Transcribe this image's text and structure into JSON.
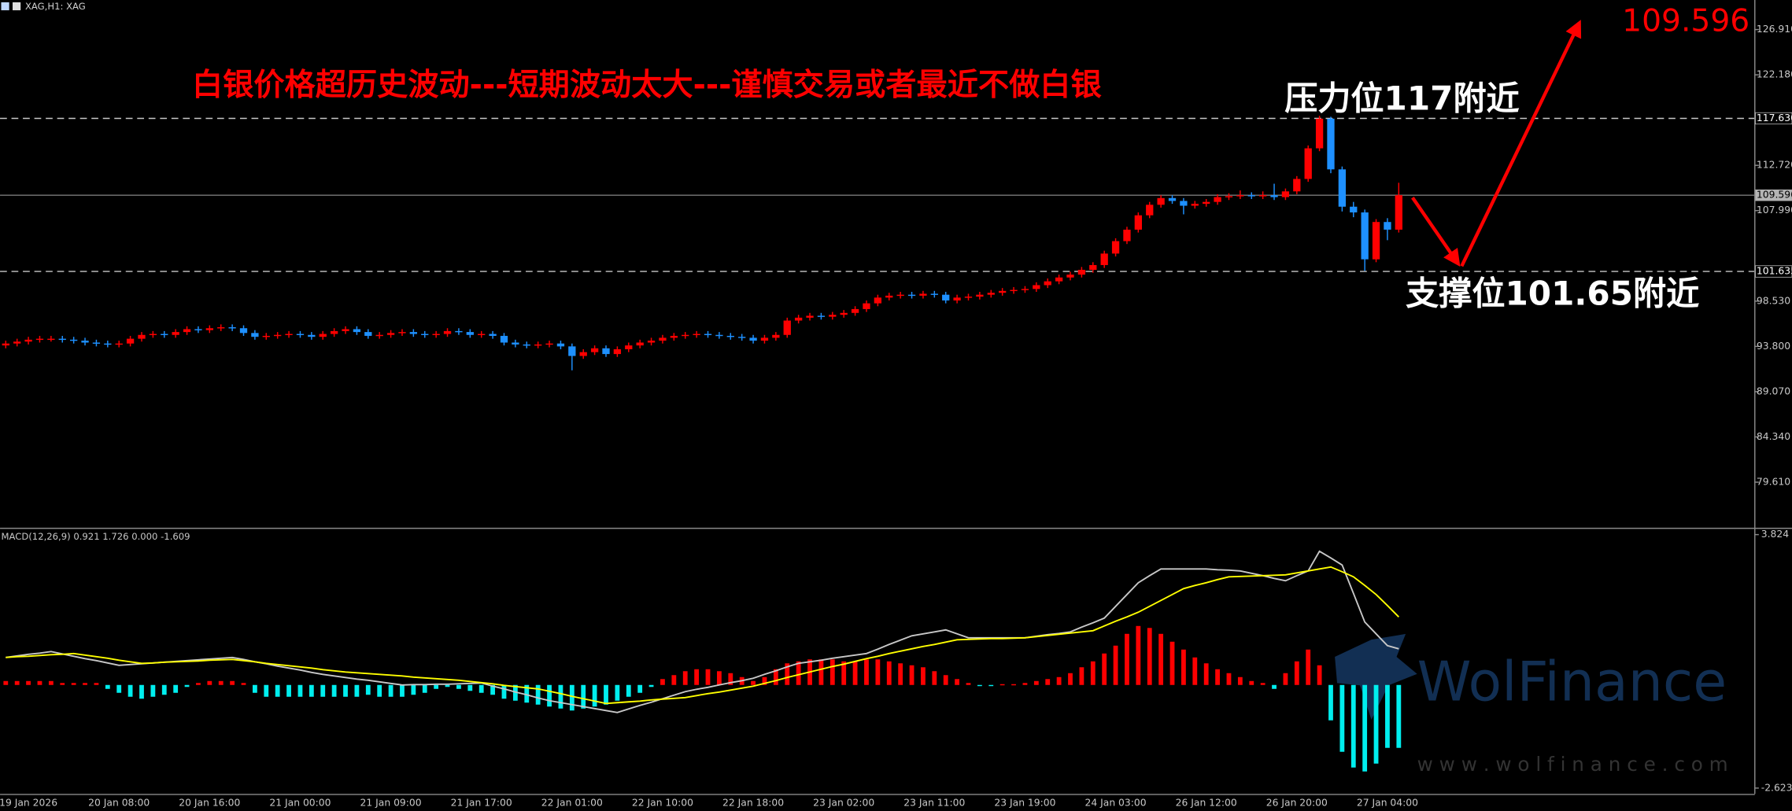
{
  "header": {
    "symbol_label": "XAG,H1: XAG"
  },
  "watermark": {
    "brand": "WolFinance",
    "url": "w w w . w o l f i n a n c e . c o m"
  },
  "chart_data": [
    {
      "type": "candlestick",
      "title": "白银价格超历史波动---短期波动太大---谨慎交易或者最近不做白银",
      "annotations": [
        {
          "text": "压力位117附近"
        },
        {
          "text": "支撑位101.65附近"
        }
      ],
      "price_label": "109.596",
      "up_color": "#ff0000",
      "down_color": "#1e90ff",
      "ylim": [
        74.85,
        130.0
      ],
      "yticks": [
        {
          "value": 79.61,
          "label": "79.610"
        },
        {
          "value": 84.34,
          "label": "84.340"
        },
        {
          "value": 89.07,
          "label": "89.070"
        },
        {
          "value": 93.8,
          "label": "93.800"
        },
        {
          "value": 98.53,
          "label": "98.530"
        },
        {
          "value": 107.99,
          "label": "107.990"
        },
        {
          "value": 112.72,
          "label": "112.720"
        },
        {
          "value": 122.18,
          "label": "122.180"
        },
        {
          "value": 126.91,
          "label": "126.910"
        }
      ],
      "levels": [
        {
          "value": 117.63,
          "label": "117.630",
          "style": "dashed"
        },
        {
          "value": 109.596,
          "label": "109.596",
          "style": "solid"
        },
        {
          "value": 101.635,
          "label": "101.635",
          "style": "dashed"
        }
      ],
      "categories": [
        null,
        null,
        "19 Jan 2026",
        null,
        null,
        null,
        null,
        null,
        null,
        null,
        "20 Jan 08:00",
        null,
        null,
        null,
        null,
        null,
        null,
        null,
        "20 Jan 16:00",
        null,
        null,
        null,
        null,
        null,
        null,
        null,
        "21 Jan 00:00",
        null,
        null,
        null,
        null,
        null,
        null,
        null,
        "21 Jan 09:00",
        null,
        null,
        null,
        null,
        null,
        null,
        null,
        "21 Jan 17:00",
        null,
        null,
        null,
        null,
        null,
        null,
        null,
        "22 Jan 01:00",
        null,
        null,
        null,
        null,
        null,
        null,
        null,
        "22 Jan 10:00",
        null,
        null,
        null,
        null,
        null,
        null,
        null,
        "22 Jan 18:00",
        null,
        null,
        null,
        null,
        null,
        null,
        null,
        "23 Jan 02:00",
        null,
        null,
        null,
        null,
        null,
        null,
        null,
        "23 Jan 11:00",
        null,
        null,
        null,
        null,
        null,
        null,
        null,
        "23 Jan 19:00",
        null,
        null,
        null,
        null,
        null,
        null,
        null,
        "24 Jan 03:00",
        null,
        null,
        null,
        null,
        null,
        null,
        null,
        "26 Jan 12:00",
        null,
        null,
        null,
        null,
        null,
        null,
        null,
        "26 Jan 20:00",
        null,
        null,
        null,
        null,
        null,
        null,
        null,
        "27 Jan 04:00",
        null
      ],
      "open": [
        93.9,
        94.1,
        94.3,
        94.5,
        94.6,
        94.6,
        94.5,
        94.4,
        94.2,
        94.1,
        94.0,
        94.1,
        94.6,
        95.0,
        95.1,
        95.0,
        95.3,
        95.6,
        95.5,
        95.7,
        95.8,
        95.7,
        95.2,
        94.8,
        94.9,
        95.0,
        95.1,
        95.0,
        94.8,
        95.1,
        95.4,
        95.6,
        95.3,
        94.9,
        95.0,
        95.2,
        95.3,
        95.1,
        95.0,
        95.1,
        95.4,
        95.3,
        95.0,
        95.1,
        94.9,
        94.2,
        94.0,
        93.9,
        94.0,
        94.1,
        93.8,
        92.8,
        93.2,
        93.6,
        93.0,
        93.5,
        93.9,
        94.2,
        94.4,
        94.7,
        94.9,
        95.0,
        95.1,
        95.0,
        94.9,
        94.8,
        94.7,
        94.4,
        94.7,
        95.0,
        96.5,
        96.8,
        97.0,
        96.9,
        97.1,
        97.3,
        97.7,
        98.3,
        98.9,
        99.1,
        99.2,
        99.1,
        99.3,
        99.2,
        98.6,
        98.9,
        99.0,
        99.2,
        99.4,
        99.6,
        99.7,
        99.8,
        100.2,
        100.6,
        101.0,
        101.3,
        101.8,
        102.3,
        103.5,
        104.8,
        106.0,
        107.5,
        108.6,
        109.3,
        109.0,
        108.5,
        108.7,
        108.9,
        109.4,
        109.5,
        109.6,
        109.5,
        109.6,
        109.4,
        110.0,
        111.3,
        114.5,
        117.6,
        112.3,
        108.4,
        107.8,
        102.9,
        106.8,
        106.0
      ],
      "high": [
        94.4,
        94.6,
        94.8,
        94.9,
        94.9,
        94.9,
        94.8,
        94.7,
        94.5,
        94.4,
        94.4,
        94.9,
        95.3,
        95.4,
        95.4,
        95.6,
        95.9,
        95.9,
        96.0,
        96.1,
        96.1,
        96.0,
        95.5,
        95.2,
        95.3,
        95.4,
        95.4,
        95.3,
        95.4,
        95.7,
        95.9,
        95.9,
        95.6,
        95.3,
        95.5,
        95.6,
        95.6,
        95.4,
        95.4,
        95.7,
        95.7,
        95.6,
        95.4,
        95.4,
        95.2,
        94.5,
        94.3,
        94.3,
        94.4,
        94.4,
        94.1,
        93.5,
        93.9,
        93.9,
        93.8,
        94.2,
        94.5,
        94.7,
        95.0,
        95.2,
        95.3,
        95.4,
        95.4,
        95.3,
        95.2,
        95.1,
        95.0,
        95.0,
        95.3,
        96.8,
        97.1,
        97.3,
        97.3,
        97.4,
        97.6,
        98.0,
        98.6,
        99.2,
        99.4,
        99.5,
        99.5,
        99.6,
        99.6,
        99.5,
        99.2,
        99.3,
        99.5,
        99.7,
        99.9,
        100.0,
        100.1,
        100.5,
        100.9,
        101.3,
        101.6,
        102.1,
        102.6,
        103.8,
        105.1,
        106.3,
        107.8,
        108.9,
        109.6,
        109.6,
        109.3,
        109.0,
        109.2,
        109.7,
        109.8,
        110.1,
        109.9,
        110.0,
        110.8,
        110.3,
        111.6,
        114.8,
        117.9,
        117.8,
        112.6,
        108.9,
        108.1,
        107.1,
        107.2,
        110.9
      ],
      "low": [
        93.6,
        93.8,
        94.0,
        94.2,
        94.3,
        94.2,
        94.1,
        93.9,
        93.8,
        93.7,
        93.7,
        93.8,
        94.3,
        94.7,
        94.7,
        94.7,
        95.0,
        95.2,
        95.2,
        95.4,
        95.4,
        94.9,
        94.5,
        94.5,
        94.6,
        94.7,
        94.7,
        94.5,
        94.5,
        94.8,
        95.1,
        95.0,
        94.6,
        94.6,
        94.7,
        94.9,
        94.8,
        94.7,
        94.7,
        94.8,
        95.0,
        94.7,
        94.7,
        94.6,
        93.9,
        93.7,
        93.6,
        93.6,
        93.7,
        93.5,
        91.3,
        92.5,
        92.9,
        92.7,
        92.7,
        93.2,
        93.6,
        93.9,
        94.1,
        94.4,
        94.6,
        94.7,
        94.7,
        94.6,
        94.5,
        94.4,
        94.1,
        94.1,
        94.4,
        94.7,
        96.2,
        96.5,
        96.6,
        96.6,
        96.8,
        97.0,
        97.4,
        98.0,
        98.6,
        98.8,
        98.8,
        98.8,
        98.9,
        98.3,
        98.3,
        98.6,
        98.7,
        98.9,
        99.1,
        99.3,
        99.4,
        99.5,
        99.9,
        100.3,
        100.7,
        101.0,
        101.5,
        102.0,
        103.2,
        104.5,
        105.7,
        107.2,
        108.3,
        108.7,
        107.6,
        108.2,
        108.4,
        108.6,
        109.1,
        109.2,
        109.2,
        109.2,
        109.1,
        109.1,
        109.7,
        111.0,
        114.2,
        111.9,
        107.9,
        107.3,
        101.7,
        102.6,
        104.9,
        105.7
      ],
      "close": [
        94.1,
        94.3,
        94.5,
        94.6,
        94.6,
        94.5,
        94.4,
        94.2,
        94.1,
        94.0,
        94.1,
        94.6,
        95.0,
        95.1,
        95.0,
        95.3,
        95.6,
        95.5,
        95.7,
        95.8,
        95.7,
        95.2,
        94.8,
        94.9,
        95.0,
        95.1,
        95.0,
        94.8,
        95.1,
        95.4,
        95.6,
        95.3,
        94.9,
        95.0,
        95.2,
        95.3,
        95.1,
        95.0,
        95.1,
        95.4,
        95.3,
        95.0,
        95.1,
        94.9,
        94.2,
        94.0,
        93.9,
        94.0,
        94.1,
        93.8,
        92.8,
        93.2,
        93.6,
        93.0,
        93.5,
        93.9,
        94.2,
        94.4,
        94.7,
        94.9,
        95.0,
        95.1,
        95.0,
        94.9,
        94.8,
        94.7,
        94.4,
        94.7,
        95.0,
        96.5,
        96.8,
        97.0,
        96.9,
        97.1,
        97.3,
        97.7,
        98.3,
        98.9,
        99.1,
        99.2,
        99.1,
        99.3,
        99.2,
        98.6,
        98.9,
        99.0,
        99.2,
        99.4,
        99.6,
        99.7,
        99.8,
        100.2,
        100.6,
        101.0,
        101.3,
        101.8,
        102.3,
        103.5,
        104.8,
        106.0,
        107.5,
        108.6,
        109.3,
        109.0,
        108.5,
        108.7,
        108.9,
        109.4,
        109.5,
        109.6,
        109.5,
        109.6,
        109.4,
        110.0,
        111.3,
        114.5,
        117.6,
        112.3,
        108.4,
        107.8,
        102.9,
        106.8,
        106.0,
        109.6
      ]
    },
    {
      "type": "macd",
      "title": "MACD(12,26,9) 0.921 1.726 0.000 -1.609",
      "ylim": [
        -2.77,
        3.97
      ],
      "yticks": [
        3.824,
        -2.623
      ],
      "histogram": {
        "positive_color": "#ff0000",
        "negative_color": "#00eeee",
        "values": [
          0.1,
          0.1,
          0.1,
          0.1,
          0.1,
          0.05,
          0.05,
          0.05,
          0.05,
          -0.1,
          -0.2,
          -0.3,
          -0.35,
          -0.3,
          -0.25,
          -0.2,
          -0.05,
          0.05,
          0.1,
          0.1,
          0.1,
          0.05,
          -0.2,
          -0.3,
          -0.3,
          -0.3,
          -0.3,
          -0.3,
          -0.3,
          -0.3,
          -0.3,
          -0.3,
          -0.25,
          -0.3,
          -0.3,
          -0.3,
          -0.25,
          -0.2,
          -0.1,
          -0.05,
          -0.1,
          -0.15,
          -0.2,
          -0.25,
          -0.35,
          -0.4,
          -0.45,
          -0.5,
          -0.55,
          -0.6,
          -0.65,
          -0.6,
          -0.55,
          -0.5,
          -0.4,
          -0.3,
          -0.2,
          -0.05,
          0.15,
          0.25,
          0.35,
          0.4,
          0.4,
          0.35,
          0.3,
          0.2,
          0.1,
          0.2,
          0.4,
          0.55,
          0.6,
          0.65,
          0.65,
          0.65,
          0.6,
          0.6,
          0.65,
          0.65,
          0.6,
          0.55,
          0.5,
          0.45,
          0.35,
          0.25,
          0.15,
          0.05,
          -0.02,
          -0.02,
          0.02,
          0.02,
          0.05,
          0.1,
          0.15,
          0.2,
          0.3,
          0.45,
          0.6,
          0.8,
          1.0,
          1.3,
          1.5,
          1.45,
          1.3,
          1.1,
          0.9,
          0.7,
          0.55,
          0.4,
          0.3,
          0.2,
          0.1,
          0.05,
          -0.1,
          0.3,
          0.6,
          0.9,
          0.5,
          -0.9,
          -1.7,
          -2.1,
          -2.2,
          -2.0,
          -1.6,
          -1.6
        ]
      },
      "series": [
        {
          "color": "#c8c8c8",
          "values": [
            0.7,
            0.74,
            0.78,
            0.81,
            0.85,
            0.79,
            0.73,
            0.67,
            0.62,
            0.56,
            0.5,
            0.52,
            0.54,
            0.56,
            0.58,
            0.6,
            0.62,
            0.64,
            0.66,
            0.68,
            0.7,
            0.65,
            0.59,
            0.54,
            0.48,
            0.43,
            0.38,
            0.32,
            0.27,
            0.23,
            0.19,
            0.15,
            0.12,
            0.08,
            0.04,
            0.0,
            0.01,
            0.01,
            0.02,
            0.02,
            0.03,
            0.04,
            0.05,
            -0.03,
            -0.1,
            -0.18,
            -0.25,
            -0.33,
            -0.4,
            -0.45,
            -0.5,
            -0.55,
            -0.6,
            -0.65,
            -0.7,
            -0.61,
            -0.52,
            -0.44,
            -0.35,
            -0.26,
            -0.17,
            -0.11,
            -0.06,
            0.0,
            0.06,
            0.11,
            0.17,
            0.27,
            0.36,
            0.46,
            0.55,
            0.59,
            0.63,
            0.68,
            0.72,
            0.76,
            0.8,
            0.91,
            1.03,
            1.14,
            1.25,
            1.3,
            1.35,
            1.4,
            1.3,
            1.2,
            1.2,
            1.2,
            1.2,
            1.2,
            1.2,
            1.24,
            1.28,
            1.31,
            1.35,
            1.47,
            1.58,
            1.7,
            2.0,
            2.3,
            2.6,
            2.78,
            2.95,
            2.95,
            2.95,
            2.95,
            2.95,
            2.93,
            2.92,
            2.9,
            2.84,
            2.78,
            2.71,
            2.65,
            2.78,
            2.9,
            3.4,
            3.23,
            3.05,
            2.33,
            1.6,
            1.3,
            1.0,
            0.92
          ]
        },
        {
          "color": "#ffff00",
          "values": [
            0.7,
            0.72,
            0.73,
            0.75,
            0.77,
            0.78,
            0.8,
            0.76,
            0.72,
            0.68,
            0.63,
            0.59,
            0.55,
            0.56,
            0.58,
            0.59,
            0.6,
            0.61,
            0.63,
            0.64,
            0.65,
            0.62,
            0.59,
            0.55,
            0.52,
            0.49,
            0.46,
            0.43,
            0.39,
            0.36,
            0.33,
            0.31,
            0.29,
            0.27,
            0.25,
            0.23,
            0.2,
            0.18,
            0.16,
            0.14,
            0.12,
            0.09,
            0.06,
            0.03,
            -0.01,
            -0.04,
            -0.07,
            -0.1,
            -0.16,
            -0.22,
            -0.29,
            -0.35,
            -0.41,
            -0.47,
            -0.45,
            -0.43,
            -0.41,
            -0.38,
            -0.36,
            -0.34,
            -0.32,
            -0.27,
            -0.22,
            -0.18,
            -0.13,
            -0.08,
            -0.03,
            0.04,
            0.11,
            0.19,
            0.26,
            0.33,
            0.4,
            0.47,
            0.53,
            0.6,
            0.67,
            0.73,
            0.8,
            0.86,
            0.92,
            0.98,
            1.03,
            1.09,
            1.15,
            1.16,
            1.17,
            1.18,
            1.18,
            1.19,
            1.2,
            1.23,
            1.26,
            1.29,
            1.32,
            1.35,
            1.38,
            1.5,
            1.62,
            1.73,
            1.85,
            2.0,
            2.15,
            2.3,
            2.45,
            2.53,
            2.6,
            2.68,
            2.75,
            2.76,
            2.77,
            2.78,
            2.79,
            2.8,
            2.85,
            2.9,
            2.95,
            3.0,
            2.88,
            2.75,
            2.53,
            2.3,
            2.02,
            1.73
          ]
        }
      ]
    }
  ]
}
